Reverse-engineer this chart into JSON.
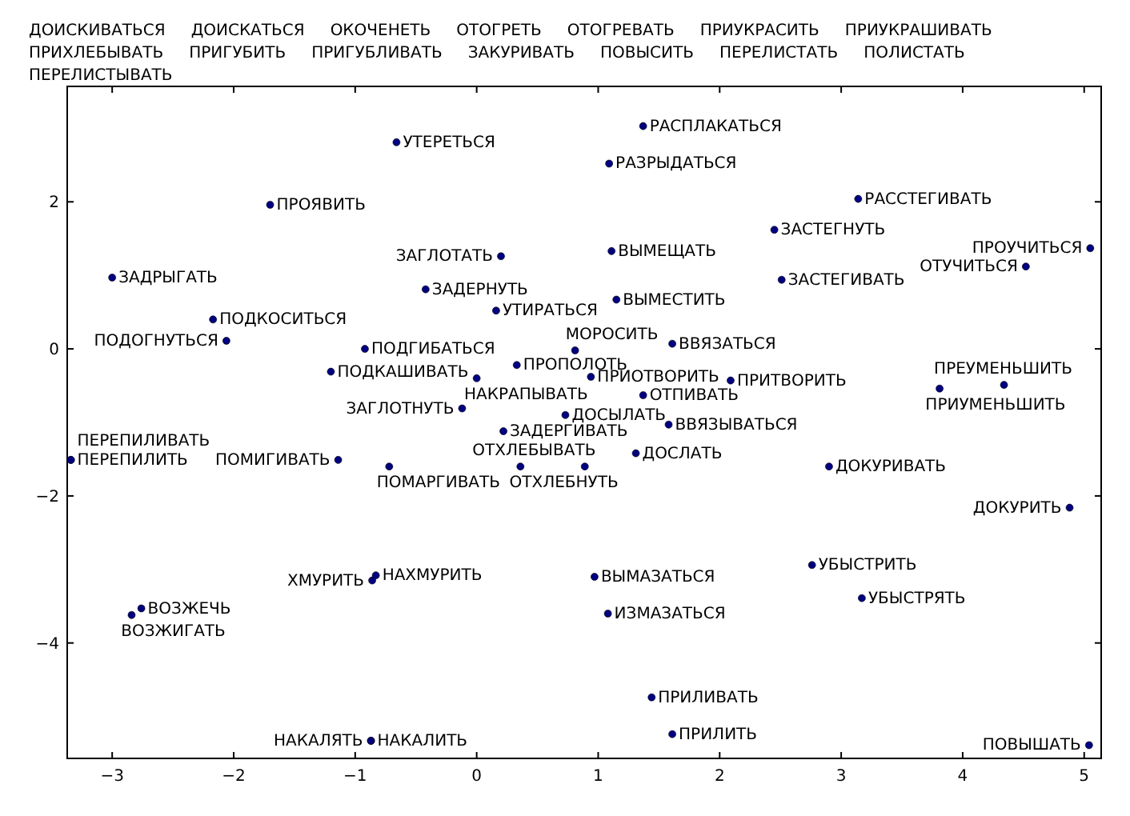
{
  "chart_data": {
    "type": "scatter",
    "marker": "circle",
    "grid": false,
    "xlim": [
      -3.37,
      5.14
    ],
    "ylim": [
      -5.57,
      3.57
    ],
    "xticks": [
      {
        "value": -3,
        "label": "−3"
      },
      {
        "value": -2,
        "label": "−2"
      },
      {
        "value": -1,
        "label": "−1"
      },
      0,
      1,
      2,
      3,
      4,
      5
    ],
    "yticks": [
      {
        "value": -4,
        "label": "−4"
      },
      {
        "value": -2,
        "label": "−2"
      },
      0,
      2
    ],
    "series": [
      {
        "color": "#000080",
        "x": [
          -0.66,
          -1.7,
          -3.0,
          0.2,
          -0.42,
          0.16,
          -2.17,
          -2.06,
          -0.92,
          -1.2,
          0.33,
          0.0,
          -0.12,
          0.22,
          0.73,
          -3.34,
          -3.34,
          -1.14,
          -0.72,
          0.36,
          0.89,
          1.31,
          1.11,
          1.15,
          0.81,
          1.61,
          0.94,
          2.09,
          1.37,
          1.58,
          2.9,
          3.81,
          4.34,
          4.88,
          1.37,
          1.09,
          3.14,
          2.45,
          2.51,
          5.05,
          4.52,
          -0.83,
          -0.86,
          -2.76,
          -2.84,
          -0.87,
          -0.87,
          0.97,
          1.08,
          2.76,
          3.17,
          1.44,
          1.61,
          5.04
        ],
        "values": [
          2.81,
          1.96,
          0.97,
          1.26,
          0.81,
          0.52,
          0.4,
          0.11,
          0.0,
          -0.31,
          -0.22,
          -0.4,
          -0.81,
          -1.12,
          -0.9,
          -1.51,
          -1.51,
          -1.51,
          -1.6,
          -1.6,
          -1.6,
          -1.42,
          1.33,
          0.67,
          -0.02,
          0.07,
          -0.38,
          -0.43,
          -0.63,
          -1.03,
          -1.6,
          -0.54,
          -0.49,
          -2.16,
          3.03,
          2.52,
          2.04,
          1.62,
          0.94,
          1.37,
          1.12,
          -3.08,
          -3.15,
          -3.53,
          -3.62,
          -5.33,
          -5.33,
          -3.1,
          -3.6,
          -2.94,
          -3.39,
          -4.74,
          -5.24,
          -5.39
        ],
        "value_labels": [
          "УТЕРЕТЬСЯ",
          "ПРОЯВИТЬ",
          "ЗАДРЫГАТЬ",
          "ЗАГЛОТАТЬ",
          "ЗАДЕРНУТЬ",
          "УТИРАТЬСЯ",
          "ПОДКОСИТЬСЯ",
          "ПОДОГНУТЬСЯ",
          "ПОДГИБАТЬСЯ",
          "ПОДКАШИВАТЬ",
          "ПРОПОЛОТЬ",
          "НАКРАПЫВАТЬ",
          "ЗАГЛОТНУТЬ",
          "ЗАДЕРГИВАТЬ",
          "ДОСЫЛАТЬ",
          "ПЕРЕПИЛИТЬ",
          "ПЕРЕПИЛИВАТЬ",
          "ПОМИГИВАТЬ",
          "ПОМАРГИВАТЬ",
          "ОТХЛЕБНУТЬ",
          "ОТХЛЕБЫВАТЬ",
          "ДОСЛАТЬ",
          "ВЫМЕЩАТЬ",
          "ВЫМЕСТИТЬ",
          "МОРОСИТЬ",
          "ВВЯЗАТЬСЯ",
          "ПРИОТВОРИТЬ",
          "ПРИТВОРИТЬ",
          "ОТПИВАТЬ",
          "ВВЯЗЫВАТЬСЯ",
          "ДОКУРИВАТЬ",
          "ПРИУМЕНЬШИТЬ",
          "ПРЕУМЕНЬШИТЬ",
          "ДОКУРИТЬ",
          "РАСПЛАКАТЬСЯ",
          "РАЗРЫДАТЬСЯ",
          "РАССТЕГИВАТЬ",
          "ЗАСТЕГНУТЬ",
          "ЗАСТЕГИВАТЬ",
          "ПРОУЧИТЬСЯ",
          "ОТУЧИТЬСЯ",
          "НАХМУРИТЬ",
          "ХМУРИТЬ",
          "ВОЗЖЕЧЬ",
          "ВОЗЖИГАТЬ",
          "НАКАЛИТЬ",
          "НАКАЛЯТЬ",
          "ВЫМАЗАТЬСЯ",
          "ИЗМАЗАТЬСЯ",
          "УБЫСТРИТЬ",
          "УБЫСТРЯТЬ",
          "ПРИЛИВАТЬ",
          "ПРИЛИТЬ",
          "ПОВЫШАТЬ"
        ]
      }
    ],
    "annotations": [
      "ДОИСКИВАТЬСЯ",
      "ДОИСКАТЬСЯ",
      "ОКОЧЕНЕТЬ",
      "ОТОГРЕТЬ",
      "ОТОГРЕВАТЬ",
      "ПРИУКРАСИТЬ",
      "ПРИУКРАШИВАТЬ",
      "ПРИХЛЕБЫВАТЬ",
      "ПРИГУБИТЬ",
      "ПРИГУБЛИВАТЬ",
      "ЗАКУРИВАТЬ",
      "ПОВЫСИТЬ",
      "ПЕРЕЛИСТАТЬ",
      "ПОЛИСТАТЬ",
      "ПЕРЕЛИСТЫВАТЬ"
    ]
  }
}
